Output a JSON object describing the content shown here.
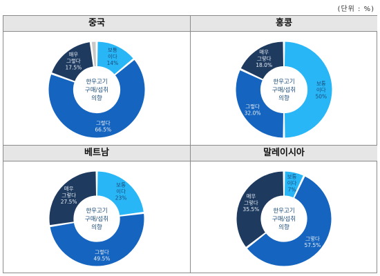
{
  "unit_label": "(단위 : %)",
  "colors": {
    "very_agree": "#1e3a5f",
    "agree": "#1565c0",
    "neutral": "#29b6f6",
    "other": "#c8c8c8"
  },
  "center_text": [
    "한우고기",
    "구매/섭취",
    "의향"
  ],
  "chart_data": [
    {
      "type": "pie",
      "title": "중국",
      "slices": [
        {
          "label": "보통이다",
          "value": 14,
          "text": [
            "보통",
            "이다",
            "14%"
          ],
          "color_key": "neutral"
        },
        {
          "label": "그렇다",
          "value": 66.5,
          "text": [
            "그렇다",
            "66.5%"
          ],
          "color_key": "agree"
        },
        {
          "label": "매우 그렇다",
          "value": 17.5,
          "text": [
            "매우",
            "그렇다",
            "17.5%"
          ],
          "color_key": "very_agree"
        },
        {
          "label": "",
          "value": 2,
          "text": [],
          "color_key": "other"
        }
      ]
    },
    {
      "type": "pie",
      "title": "홍콩",
      "slices": [
        {
          "label": "보통이다",
          "value": 50,
          "text": [
            "보통",
            "이다",
            "50%"
          ],
          "color_key": "neutral"
        },
        {
          "label": "그렇다",
          "value": 32,
          "text": [
            "그렇다",
            "32.0%"
          ],
          "color_key": "agree"
        },
        {
          "label": "매우 그렇다",
          "value": 18,
          "text": [
            "매우",
            "그렇다",
            "18.0%"
          ],
          "color_key": "very_agree"
        }
      ]
    },
    {
      "type": "pie",
      "title": "베트남",
      "slices": [
        {
          "label": "보통이다",
          "value": 23,
          "text": [
            "보통",
            "이다",
            "23%"
          ],
          "color_key": "neutral"
        },
        {
          "label": "그렇다",
          "value": 49.5,
          "text": [
            "그렇다",
            "49.5%"
          ],
          "color_key": "agree"
        },
        {
          "label": "매우 그렇다",
          "value": 27.5,
          "text": [
            "매우",
            "그렇다",
            "27.5%"
          ],
          "color_key": "very_agree"
        }
      ]
    },
    {
      "type": "pie",
      "title": "말레이시아",
      "slices": [
        {
          "label": "보통이다",
          "value": 7,
          "text": [
            "보통",
            "이다",
            "7%"
          ],
          "color_key": "neutral"
        },
        {
          "label": "그렇다",
          "value": 57.5,
          "text": [
            "그렇다",
            "57.5%"
          ],
          "color_key": "agree"
        },
        {
          "label": "매우 그렇다",
          "value": 35.5,
          "text": [
            "매우",
            "그렇다",
            "35.5%"
          ],
          "color_key": "very_agree"
        }
      ]
    }
  ]
}
